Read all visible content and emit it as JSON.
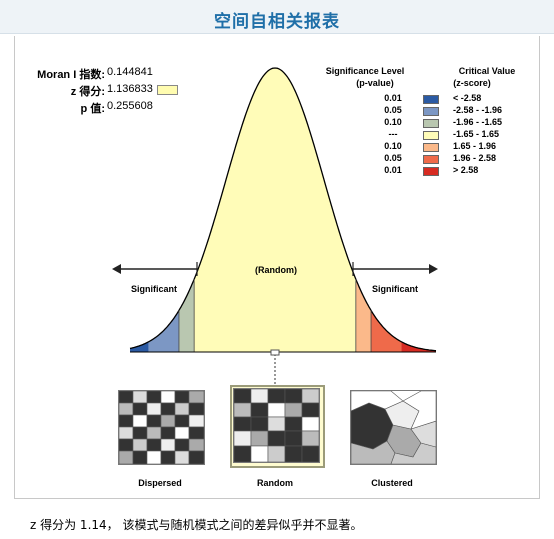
{
  "title": "空间自相关报表",
  "stats": {
    "moran_label": "Moran I 指数:",
    "moran_value": "0.144841",
    "z_label": "z 得分:",
    "z_value": "1.136833",
    "p_label": "p 值:",
    "p_value": "0.255608"
  },
  "legend": {
    "sig_header_1": "Significance Level",
    "sig_header_2": "(p-value)",
    "cv_header_1": "Critical Value",
    "cv_header_2": "(z-score)",
    "rows": [
      {
        "p": "0.01",
        "z": "< -2.58",
        "color": "#2b5aa3"
      },
      {
        "p": "0.05",
        "z": "-2.58 - -1.96",
        "color": "#7c97c4"
      },
      {
        "p": "0.10",
        "z": "-1.96 - -1.65",
        "color": "#b9c7b0"
      },
      {
        "p": "---",
        "z": "-1.65 - 1.65",
        "color": "#fffcb8"
      },
      {
        "p": "0.10",
        "z": "1.65 - 1.96",
        "color": "#fbb98a"
      },
      {
        "p": "0.05",
        "z": "1.96 - 2.58",
        "color": "#ef6a4a"
      },
      {
        "p": "0.01",
        "z": "> 2.58",
        "color": "#d72b22"
      }
    ]
  },
  "curve": {
    "left_label": "Significant",
    "right_label": "Significant",
    "center_label": "(Random)"
  },
  "maps": {
    "dispersed": "Dispersed",
    "random": "Random",
    "clustered": "Clustered"
  },
  "summary": "z 得分为 1.14，  该模式与随机模式之间的差异似乎并不显著。"
}
